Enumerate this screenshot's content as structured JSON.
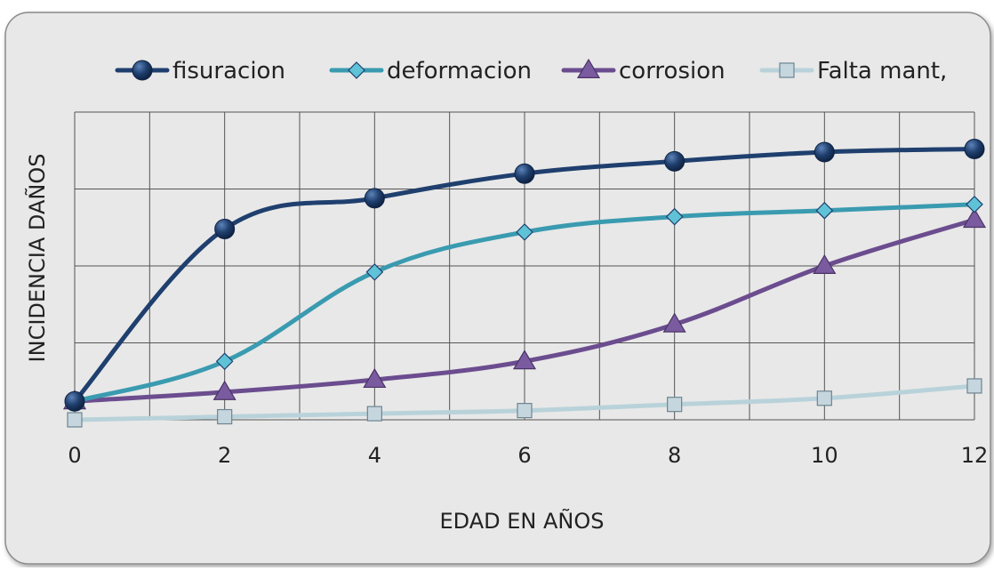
{
  "chart_data": {
    "type": "line",
    "title": "",
    "xlabel": "EDAD EN AÑOS",
    "ylabel": "INCIDENCIA  DAÑOS",
    "x": [
      0,
      2,
      4,
      6,
      8,
      10,
      12
    ],
    "x_ticks": [
      "0",
      "2",
      "4",
      "6",
      "8",
      "10",
      "12"
    ],
    "xlim": [
      0,
      12
    ],
    "ylim": [
      0,
      100
    ],
    "y_ticks_labeled": false,
    "grid": true,
    "legend_position": "top",
    "series": [
      {
        "name": "fisuracion",
        "values": [
          6,
          62,
          72,
          80,
          84,
          87,
          88
        ],
        "color": "#1F3F6E",
        "marker": "circle"
      },
      {
        "name": "deformacion",
        "values": [
          6,
          19,
          48,
          61,
          66,
          68,
          70
        ],
        "color": "#3A9BB0",
        "marker": "diamond"
      },
      {
        "name": "corrosion",
        "values": [
          6,
          9,
          13,
          19,
          31,
          50,
          65
        ],
        "color": "#6B4D8F",
        "marker": "triangle"
      },
      {
        "name": "Falta mant,",
        "values": [
          0,
          1,
          2,
          3,
          5,
          7,
          11
        ],
        "color": "#B9D2DA",
        "marker": "square"
      }
    ]
  }
}
